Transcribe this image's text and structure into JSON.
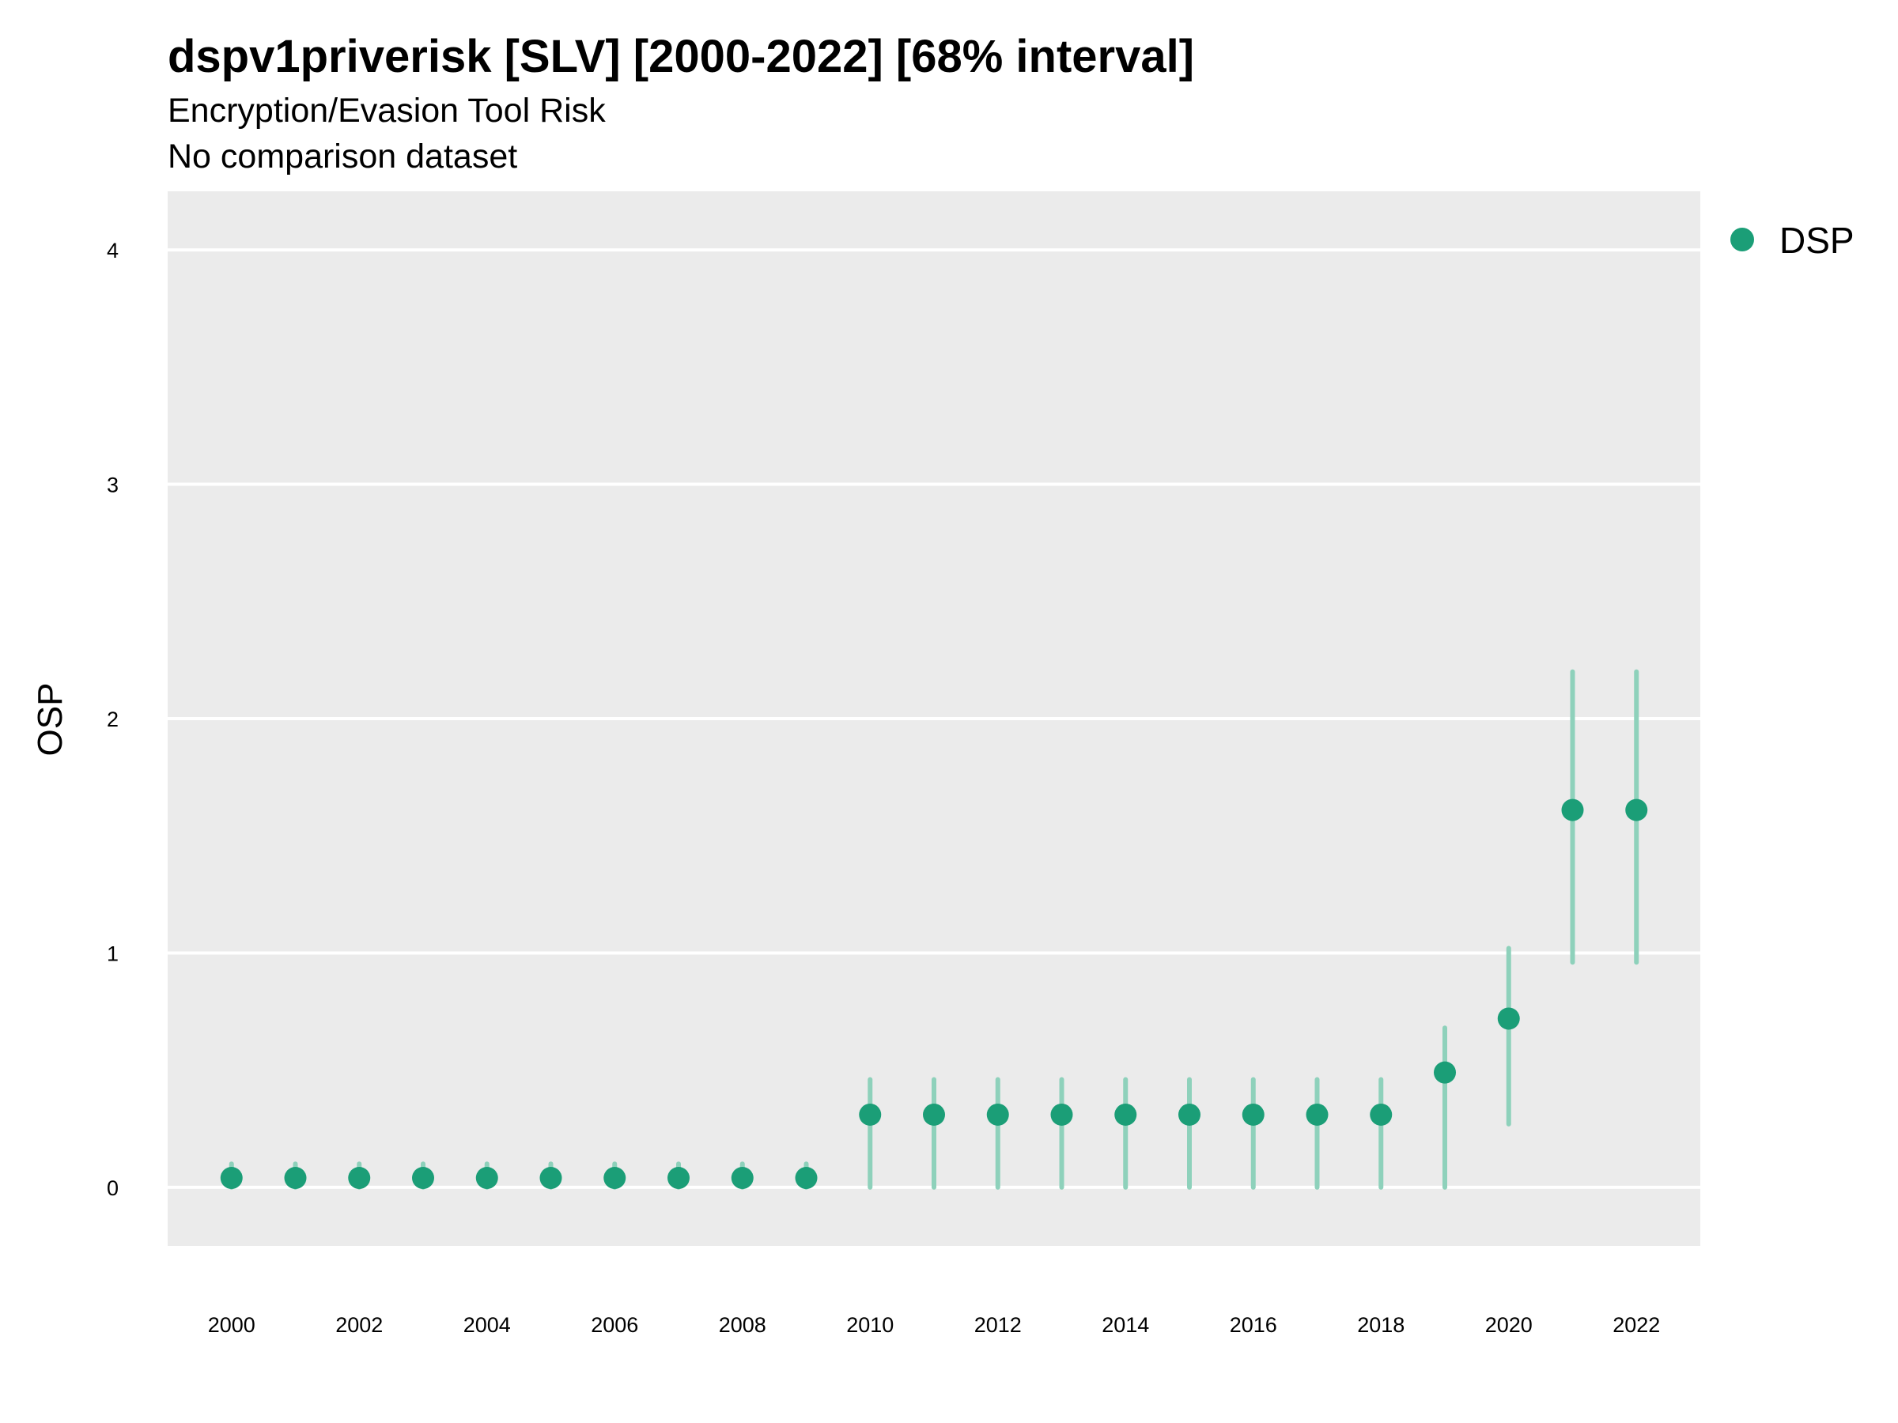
{
  "title": "dspv1priverisk [SLV] [2000-2022] [68% interval]",
  "subtitle": "Encryption/Evasion Tool Risk",
  "subtitle2": "No comparison dataset",
  "colors": {
    "point": "#1b9e77",
    "interval": "#8ed1bb",
    "panel": "#ebebeb",
    "grid": "#ffffff"
  },
  "chart_data": {
    "type": "scatter",
    "title": "dspv1priverisk [SLV] [2000-2022] [68% interval]",
    "subtitle": "Encryption/Evasion Tool Risk",
    "xlabel": "",
    "ylabel": "OSP",
    "xlim": [
      1999,
      2023
    ],
    "ylim": [
      -0.25,
      4.25
    ],
    "x_ticks": [
      2000,
      2002,
      2004,
      2006,
      2008,
      2010,
      2012,
      2014,
      2016,
      2018,
      2020,
      2022
    ],
    "y_ticks": [
      0,
      1,
      2,
      3,
      4
    ],
    "grid": true,
    "legend_position": "right-top",
    "series": [
      {
        "name": "DSP",
        "x": [
          2000,
          2001,
          2002,
          2003,
          2004,
          2005,
          2006,
          2007,
          2008,
          2009,
          2010,
          2011,
          2012,
          2013,
          2014,
          2015,
          2016,
          2017,
          2018,
          2019,
          2020,
          2021,
          2022
        ],
        "y": [
          0.04,
          0.04,
          0.04,
          0.04,
          0.04,
          0.04,
          0.04,
          0.04,
          0.04,
          0.04,
          0.31,
          0.31,
          0.31,
          0.31,
          0.31,
          0.31,
          0.31,
          0.31,
          0.31,
          0.49,
          0.72,
          1.61,
          1.61
        ],
        "lower": [
          0.0,
          0.0,
          0.0,
          0.0,
          0.0,
          0.0,
          0.0,
          0.0,
          0.0,
          0.0,
          0.0,
          0.0,
          0.0,
          0.0,
          0.0,
          0.0,
          0.0,
          0.0,
          0.0,
          0.0,
          0.27,
          0.96,
          0.96
        ],
        "upper": [
          0.1,
          0.1,
          0.1,
          0.1,
          0.1,
          0.1,
          0.1,
          0.1,
          0.1,
          0.1,
          0.46,
          0.46,
          0.46,
          0.46,
          0.46,
          0.46,
          0.46,
          0.46,
          0.46,
          0.68,
          1.02,
          2.2,
          2.2
        ]
      }
    ]
  }
}
